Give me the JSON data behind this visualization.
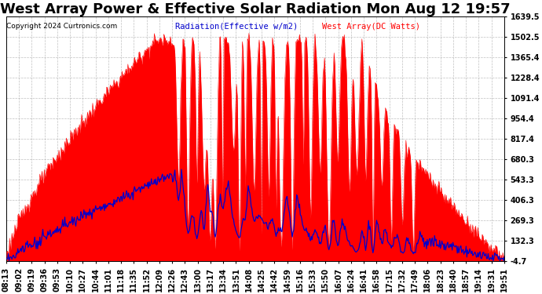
{
  "title": "West Array Power & Effective Solar Radiation Mon Aug 12 19:57",
  "copyright": "Copyright 2024 Curtronics.com",
  "legend_radiation": "Radiation(Effective w/m2)",
  "legend_west": "West Array(DC Watts)",
  "yticks": [
    1639.5,
    1502.5,
    1365.4,
    1228.4,
    1091.4,
    954.4,
    817.4,
    680.3,
    543.3,
    406.3,
    269.3,
    132.3,
    -4.7
  ],
  "ymin": -4.7,
  "ymax": 1639.5,
  "background_color": "#ffffff",
  "plot_bg_color": "#ffffff",
  "grid_color": "#b0b0b0",
  "red_color": "#ff0000",
  "blue_color": "#0000cc",
  "fill_color": "#ff0000",
  "title_fontsize": 13,
  "tick_fontsize": 7,
  "xtick_labels": [
    "08:13",
    "09:02",
    "09:19",
    "09:36",
    "09:53",
    "10:10",
    "10:27",
    "10:44",
    "11:01",
    "11:18",
    "11:35",
    "11:52",
    "12:09",
    "12:26",
    "12:43",
    "13:00",
    "13:17",
    "13:34",
    "13:51",
    "14:08",
    "14:25",
    "14:42",
    "14:59",
    "15:16",
    "15:33",
    "15:50",
    "16:07",
    "16:24",
    "16:41",
    "16:58",
    "17:15",
    "17:32",
    "17:49",
    "18:06",
    "18:23",
    "18:40",
    "18:57",
    "19:14",
    "19:31",
    "19:51"
  ],
  "n_points": 680
}
